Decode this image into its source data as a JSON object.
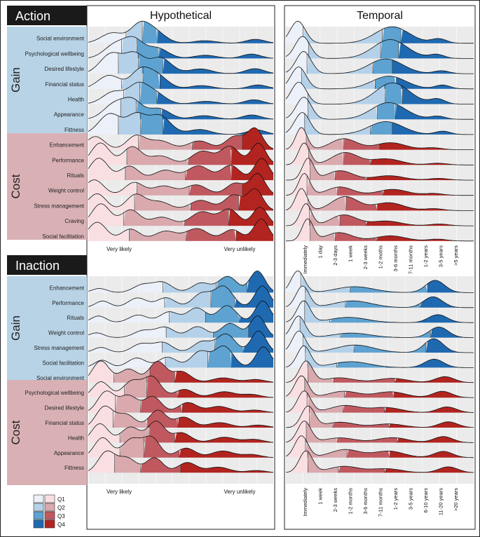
{
  "chart_data": {
    "type": "ridgeline",
    "legend": {
      "title": "",
      "quartiles": [
        "Q1",
        "Q2",
        "Q3",
        "Q4"
      ],
      "blue_swatches": [
        "#ecf0f8",
        "#b4d1e9",
        "#5da2d1",
        "#1f69b1"
      ],
      "red_swatches": [
        "#f9dfe2",
        "#d9a9ad",
        "#c0595f",
        "#b2241f"
      ]
    },
    "colors": {
      "gain_side": "#b8d3e6",
      "cost_side": "#d9b1b5",
      "header_bg": "#1a1a1a",
      "panel_bg": "#ebebeb"
    },
    "column_titles": {
      "hypothetical": "Hypothetical",
      "temporal": "Temporal"
    },
    "sections": [
      {
        "title": "Action",
        "groups": [
          {
            "name": "Gain",
            "palette": "blue",
            "items": [
              "Social environment",
              "Psychological wellbeing",
              "Desired lifestyle",
              "Financial status",
              "Health",
              "Appearance",
              "Fittness"
            ],
            "hyp_peaks": [
              [
                0.13,
                0.85,
                0.06
              ],
              [
                0.26,
                0.95,
                0.05
              ],
              [
                0.37,
                0.75,
                0.06
              ],
              [
                0.62,
                0.2,
                0.06
              ],
              [
                0.9,
                0.25,
                0.05
              ]
            ],
            "tem_peaks": [
              [
                0.08,
                0.9,
                0.04
              ],
              [
                0.55,
                0.65,
                0.09
              ],
              [
                0.82,
                0.15,
                0.04
              ]
            ]
          },
          {
            "name": "Cost",
            "palette": "red",
            "items": [
              "Enhancement",
              "Performance",
              "Rituals",
              "Weight control",
              "Stress management",
              "Craving",
              "Social facilitation"
            ],
            "hyp_peaks": [
              [
                0.05,
                0.7,
                0.05
              ],
              [
                0.24,
                0.55,
                0.05
              ],
              [
                0.4,
                0.35,
                0.06
              ],
              [
                0.6,
                0.45,
                0.06
              ],
              [
                0.78,
                0.55,
                0.05
              ],
              [
                0.92,
                0.8,
                0.04
              ]
            ],
            "tem_peaks": [
              [
                0.1,
                0.95,
                0.03
              ],
              [
                0.3,
                0.45,
                0.07
              ],
              [
                0.55,
                0.25,
                0.08
              ],
              [
                0.8,
                0.08,
                0.05
              ]
            ]
          }
        ],
        "x_labels_hyp": [
          "Very likely",
          "Very unlikely"
        ],
        "x_labels_tem": [
          "Immediately",
          "1 day",
          "2-3 days",
          "1 week",
          "2-3 weeks",
          "1-2 moths",
          "3-6 months",
          "7-11 months",
          "1-2 years",
          "3-5 years",
          ">5 years"
        ]
      },
      {
        "title": "Inaction",
        "groups": [
          {
            "name": "Gain",
            "palette": "blue",
            "items": [
              "Enhancement",
              "Performance",
              "Rituals",
              "Weight control",
              "Stress management",
              "Social facilitation"
            ],
            "hyp_peaks": [
              [
                0.06,
                0.25,
                0.04
              ],
              [
                0.28,
                0.35,
                0.05
              ],
              [
                0.42,
                0.45,
                0.05
              ],
              [
                0.6,
                0.55,
                0.05
              ],
              [
                0.75,
                0.75,
                0.05
              ],
              [
                0.93,
                0.95,
                0.04
              ]
            ],
            "tem_peaks": [
              [
                0.08,
                0.95,
                0.035
              ],
              [
                0.35,
                0.25,
                0.1
              ],
              [
                0.8,
                0.45,
                0.05
              ]
            ]
          },
          {
            "name": "Cost",
            "palette": "red",
            "items": [
              "Social environment",
              "Psychological wellbeing",
              "Desired lifestyle",
              "Financial status",
              "Health",
              "Appearance",
              "Fittness"
            ],
            "hyp_peaks": [
              [
                0.08,
                0.7,
                0.045
              ],
              [
                0.22,
                0.55,
                0.05
              ],
              [
                0.36,
                0.65,
                0.045
              ],
              [
                0.52,
                0.35,
                0.05
              ],
              [
                0.72,
                0.2,
                0.06
              ],
              [
                0.9,
                0.1,
                0.05
              ]
            ],
            "tem_peaks": [
              [
                0.1,
                0.9,
                0.035
              ],
              [
                0.3,
                0.25,
                0.08
              ],
              [
                0.55,
                0.2,
                0.08
              ],
              [
                0.85,
                0.25,
                0.05
              ]
            ]
          }
        ],
        "x_labels_hyp": [
          "Very likely",
          "Very unlikely"
        ],
        "x_labels_tem": [
          "Immediately",
          "1 week",
          "2-3 weeks",
          "1-2 months",
          "3-6 months",
          "7-11 months",
          "1-2 years",
          "3-5 years",
          "6-10 years",
          "11-20 years",
          ">20 years"
        ]
      }
    ]
  }
}
